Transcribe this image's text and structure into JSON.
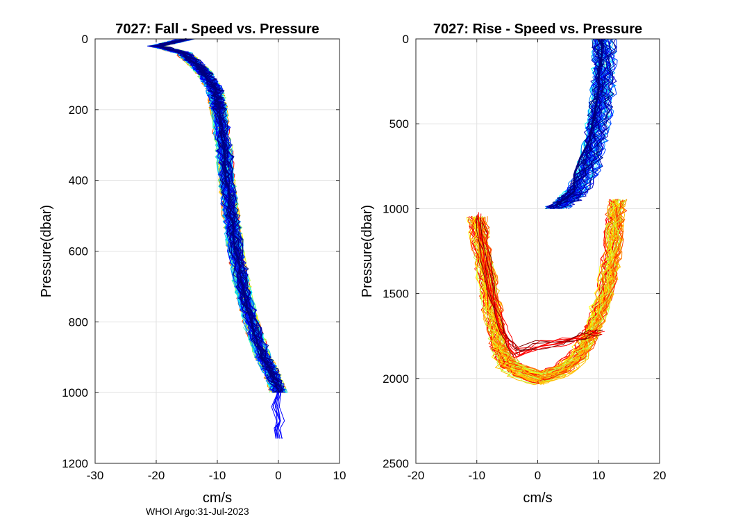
{
  "footer": "WHOI Argo:31-Jul-2023",
  "palette": [
    "#ff0000",
    "#ff4000",
    "#ff8000",
    "#ffbf00",
    "#ffff00",
    "#bfff40",
    "#80ff80",
    "#40ffbf",
    "#00ffff",
    "#00bfff",
    "#0080ff",
    "#0040ff",
    "#0000ff",
    "#0000bf",
    "#000080"
  ],
  "chart_data": [
    {
      "type": "line",
      "title": "7027: Fall - Speed vs. Pressure",
      "xlabel": "cm/s",
      "ylabel": "Pressure(dbar)",
      "xlim": [
        -30,
        10
      ],
      "ylim": [
        0,
        1200
      ],
      "y_reversed": true,
      "xticks": [
        -30,
        -20,
        -10,
        0,
        10
      ],
      "yticks": [
        0,
        200,
        400,
        600,
        800,
        1000,
        1200
      ],
      "grid": true,
      "profile_count": 120,
      "color_order": "early profiles red/yellow, latest profiles dark blue",
      "mean_profile": {
        "pressure": [
          0,
          20,
          40,
          80,
          100,
          140,
          180,
          200,
          300,
          400,
          500,
          600,
          700,
          800,
          900,
          950,
          1000
        ],
        "speed": [
          -15,
          -20,
          -15.5,
          -13,
          -12,
          -10.5,
          -10,
          -9.8,
          -9,
          -8.5,
          -7.8,
          -7,
          -6,
          -4.5,
          -2.5,
          -1,
          0
        ]
      },
      "extension_profile": {
        "pressure": [
          1000,
          1040,
          1080,
          1100,
          1130
        ],
        "speed": [
          0,
          -0.5,
          0.3,
          -0.3,
          0
        ]
      }
    },
    {
      "type": "line",
      "title": "7027: Rise - Speed vs. Pressure",
      "xlabel": "cm/s",
      "ylabel": "Pressure(dbar)",
      "xlim": [
        -20,
        20
      ],
      "ylim": [
        0,
        2500
      ],
      "y_reversed": true,
      "xticks": [
        -20,
        -10,
        0,
        10,
        20
      ],
      "yticks": [
        0,
        500,
        1000,
        1500,
        2000,
        2500
      ],
      "grid": true,
      "color_order": "early profiles red/yellow, latest profiles dark blue",
      "shallow_profiles": {
        "count": 60,
        "pressure": [
          0,
          100,
          200,
          300,
          400,
          500,
          600,
          700,
          800,
          900,
          950,
          1000
        ],
        "speed": [
          11,
          11,
          11,
          10.8,
          10.5,
          10,
          9.5,
          9,
          8,
          6.5,
          5,
          3
        ],
        "highlight": {
          "pressure": [
            0,
            100,
            200,
            300,
            400,
            500,
            600,
            700,
            800,
            900,
            980
          ],
          "speed": [
            10.5,
            10.5,
            10,
            10,
            9.5,
            9,
            8.5,
            7,
            6,
            6,
            3
          ]
        }
      },
      "deep_profiles": {
        "count": 55,
        "pressure": [
          1050,
          1200,
          1400,
          1600,
          1800,
          1900,
          1950,
          2000,
          1950,
          1850,
          1700,
          1500,
          1300,
          1100,
          950
        ],
        "speed": [
          -10,
          -9.5,
          -8.5,
          -7.5,
          -6.5,
          -5.5,
          -3.5,
          0,
          4,
          7,
          9,
          11,
          12,
          12.5,
          13
        ]
      },
      "transition_profiles": {
        "count": 10,
        "pressure": [
          1050,
          1300,
          1500,
          1700,
          1800,
          1850,
          1800,
          1780,
          1760,
          1740,
          1720
        ],
        "speed": [
          -9.5,
          -8.5,
          -7.5,
          -6,
          -4.5,
          -3.5,
          0,
          4,
          7,
          9,
          10
        ]
      }
    }
  ]
}
